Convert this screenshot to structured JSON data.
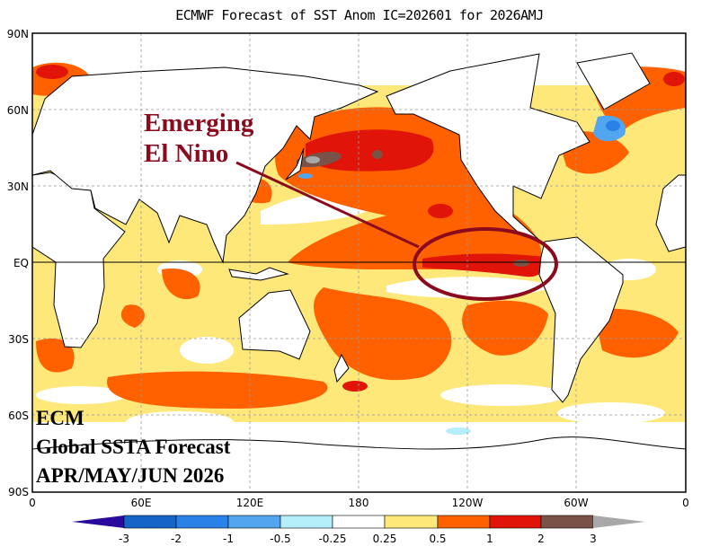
{
  "title": "ECMWF Forecast of SST Anom IC=202601 for 2026AMJ",
  "lat_labels": [
    "90N",
    "60N",
    "30N",
    "EQ",
    "30S",
    "60S",
    "90S"
  ],
  "lon_labels": [
    "0",
    "60E",
    "120E",
    "180",
    "120W",
    "60W",
    "0"
  ],
  "annotation": {
    "line1": "Emerging",
    "line2": "El Nino",
    "color": "#8b0a1e"
  },
  "info": {
    "line1": "ECM",
    "line2": "Global SSTA Forecast",
    "line3": "APR/MAY/JUN 2026"
  },
  "colorbar": {
    "labels": [
      "-3",
      "-2",
      "-1",
      "-0.5",
      "-0.25",
      "0.25",
      "0.5",
      "1",
      "2",
      "3"
    ],
    "colors": [
      "#2a0a9c",
      "#1565c8",
      "#2a82e8",
      "#52a6f0",
      "#b4eef8",
      "#ffffff",
      "#fee87a",
      "#ff6000",
      "#e01408",
      "#7a5248",
      "#a8a8a8"
    ]
  }
}
